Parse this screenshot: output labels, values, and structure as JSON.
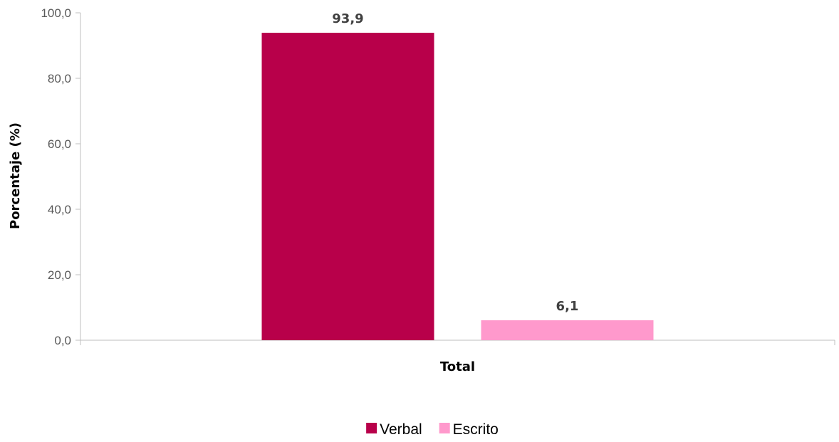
{
  "chart_data": {
    "type": "bar",
    "categories": [
      "Total"
    ],
    "series": [
      {
        "name": "Verbal",
        "values": [
          93.9
        ],
        "label": "93,9",
        "color": "#B8004A"
      },
      {
        "name": "Escrito",
        "values": [
          6.1
        ],
        "label": "6,1",
        "color": "#FF99CC"
      }
    ],
    "ylabel": "Porcentaje (%)",
    "xlabel": "",
    "ylim": [
      0,
      100
    ],
    "yticks": [
      {
        "value": 0,
        "label": "0,0"
      },
      {
        "value": 20,
        "label": "20,0"
      },
      {
        "value": 40,
        "label": "40,0"
      },
      {
        "value": 60,
        "label": "60,0"
      },
      {
        "value": 80,
        "label": "80,0"
      },
      {
        "value": 100,
        "label": "100,0"
      }
    ],
    "grid": false,
    "legend_position": "bottom",
    "axis_color": "#BFBFBF"
  }
}
